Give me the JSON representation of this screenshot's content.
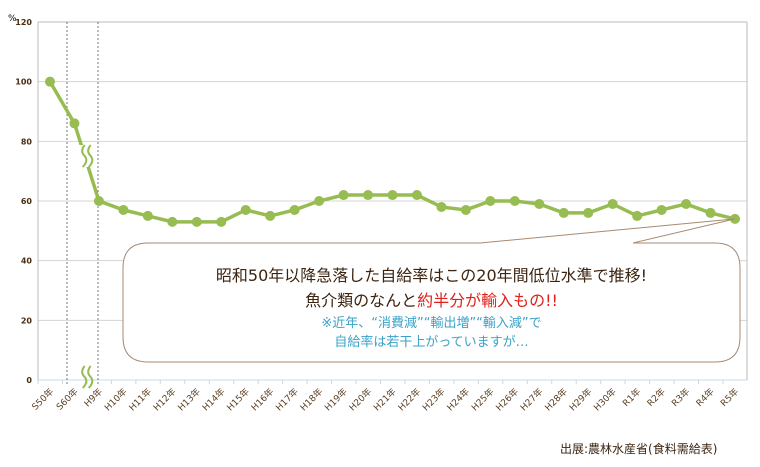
{
  "chart_data": {
    "type": "line",
    "ylabel": "%",
    "ylim": [
      0,
      120
    ],
    "yticks": [
      0,
      20,
      40,
      60,
      80,
      100,
      120
    ],
    "grid": true,
    "axis_break_between": [
      "S60年",
      "H9年"
    ],
    "categories": [
      "S50年",
      "S60年",
      "H9年",
      "H10年",
      "H11年",
      "H12年",
      "H13年",
      "H14年",
      "H15年",
      "H16年",
      "H17年",
      "H18年",
      "H19年",
      "H20年",
      "H21年",
      "H22年",
      "H23年",
      "H24年",
      "H25年",
      "H26年",
      "H27年",
      "H28年",
      "H29年",
      "H30年",
      "R1年",
      "R2年",
      "R3年",
      "R4年",
      "R5年"
    ],
    "values": [
      100,
      86,
      60,
      57,
      55,
      53,
      53,
      53,
      57,
      55,
      57,
      60,
      62,
      62,
      62,
      62,
      58,
      57,
      60,
      60,
      59,
      56,
      56,
      59,
      55,
      57,
      59,
      56,
      54
    ],
    "line_color": "#96bc52"
  },
  "callout": {
    "line1": "昭和50年以降急落した自給率はこの20年間低位水準で推移!",
    "line2_a": "魚介類のなんと",
    "line2_b": "約半分が輸入もの!!",
    "line3": "※近年、“消費減”“輸出増”“輸入減”で",
    "line4": "自給率は若干上がっていますが…",
    "highlight_color": "#e0201a",
    "note_color": "#3aa2c8"
  },
  "source": "出展:農林水産省(食料需給表)"
}
